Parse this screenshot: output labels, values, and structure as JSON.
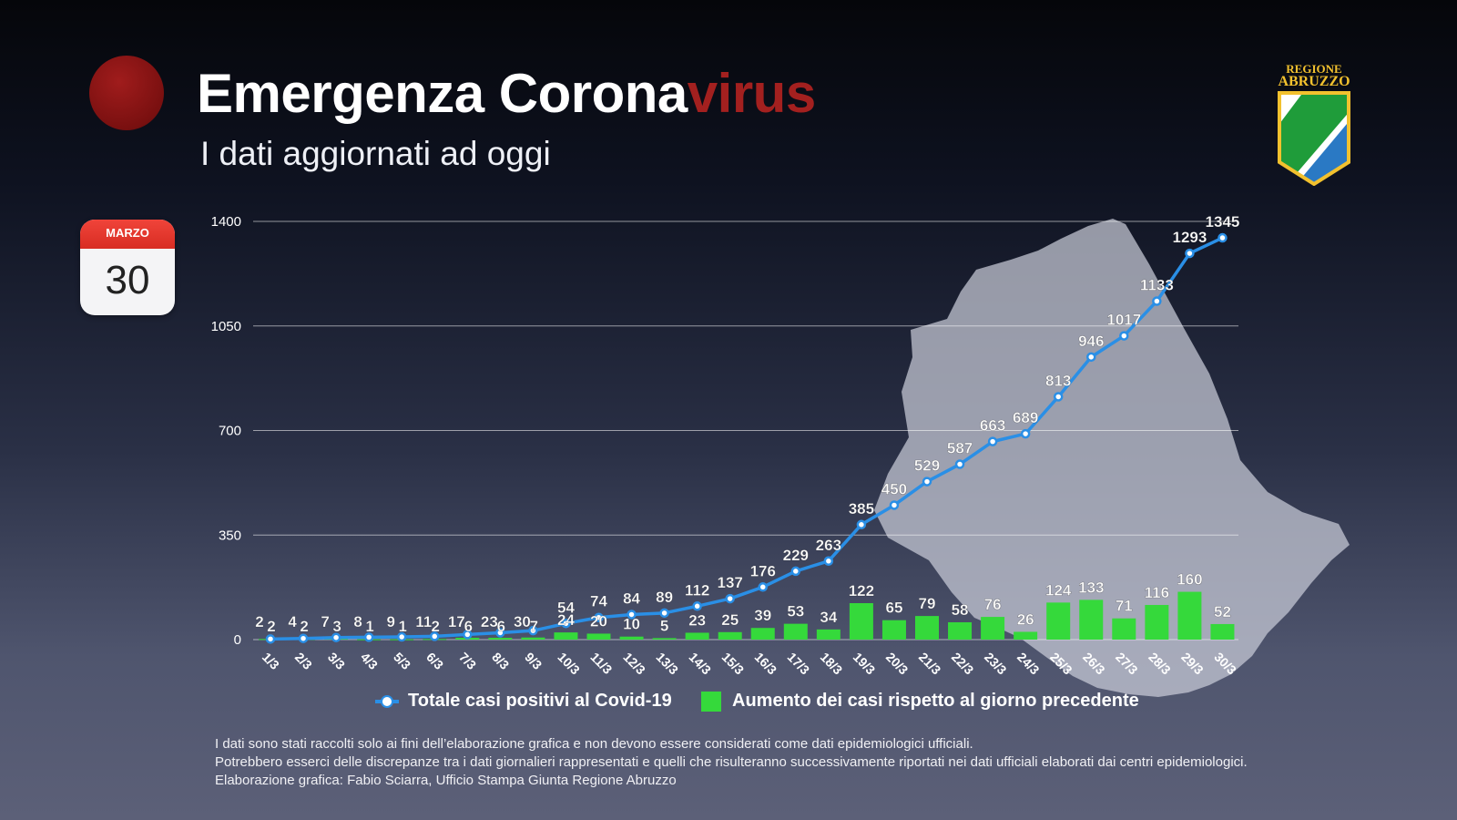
{
  "header": {
    "title_main": "Emergenza Corona",
    "title_accent": "virus",
    "subtitle": "I dati aggiornati ad oggi"
  },
  "calendar": {
    "month": "MARZO",
    "day": "30"
  },
  "logo": {
    "line1": "REGIONE",
    "line2": "ABRUZZO"
  },
  "colors": {
    "line": "#2a8fe6",
    "bar": "#35d93b",
    "accent": "#a3201f"
  },
  "chart_data": {
    "type": "bar",
    "categories": [
      "1/3",
      "2/3",
      "3/3",
      "4/3",
      "5/3",
      "6/3",
      "7/3",
      "8/3",
      "9/3",
      "10/3",
      "11/3",
      "12/3",
      "13/3",
      "14/3",
      "15/3",
      "16/3",
      "17/3",
      "18/3",
      "19/3",
      "20/3",
      "21/3",
      "22/3",
      "23/3",
      "24/3",
      "25/3",
      "26/3",
      "27/3",
      "28/3",
      "29/3",
      "30/3"
    ],
    "series": [
      {
        "name": "Totale casi positivi al Covid-19",
        "type": "line",
        "values": [
          2,
          4,
          7,
          8,
          9,
          11,
          17,
          23,
          30,
          54,
          74,
          84,
          89,
          112,
          137,
          176,
          229,
          263,
          385,
          450,
          529,
          587,
          663,
          689,
          813,
          946,
          1017,
          1133,
          1293,
          1345
        ]
      },
      {
        "name": "Aumento dei casi rispetto al giorno precedente",
        "type": "bar",
        "values": [
          2,
          2,
          3,
          1,
          1,
          2,
          6,
          6,
          7,
          24,
          20,
          10,
          5,
          23,
          25,
          39,
          53,
          34,
          122,
          65,
          79,
          58,
          76,
          26,
          124,
          133,
          71,
          116,
          160,
          52
        ]
      }
    ],
    "yticks": [
      0,
      350,
      700,
      1050,
      1400
    ],
    "ylim": [
      0,
      1400
    ],
    "grid": true,
    "legend": "bottom"
  },
  "footnotes": [
    "I dati sono stati raccolti solo ai fini dell’elaborazione grafica e non devono essere considerati come dati epidemiologici ufficiali.",
    "Potrebbero esserci delle discrepanze tra i dati giornalieri rappresentati e quelli che risulteranno successivamente riportati nei dati ufficiali elaborati dai centri epidemiologici.",
    "Elaborazione grafica: Fabio Sciarra, Ufficio Stampa Giunta Regione Abruzzo"
  ]
}
